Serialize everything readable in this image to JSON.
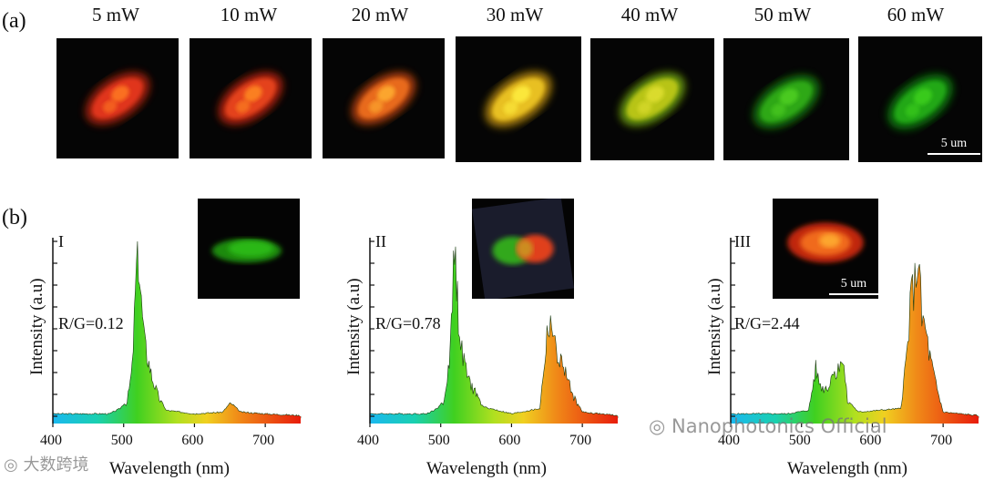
{
  "panel_a": {
    "label": "(a)",
    "powers": [
      "5 mW",
      "10 mW",
      "20 mW",
      "30 mW",
      "40 mW",
      "50 mW",
      "60 mW"
    ],
    "scale_bar": "5 um",
    "tile_colors": [
      {
        "core": "#e0351c",
        "glow": "#a8200e",
        "accent": "#ff7a20"
      },
      {
        "core": "#e4421c",
        "glow": "#b02410",
        "accent": "#ff8a24"
      },
      {
        "core": "#e86a1a",
        "glow": "#b0400c",
        "accent": "#ffb030"
      },
      {
        "core": "#e8c020",
        "glow": "#b88a10",
        "accent": "#ffee40"
      },
      {
        "core": "#b8c418",
        "glow": "#6a9a10",
        "accent": "#e0e030"
      },
      {
        "core": "#2ea818",
        "glow": "#157a0c",
        "accent": "#50d020"
      },
      {
        "core": "#22a814",
        "glow": "#107a08",
        "accent": "#3cd01c"
      }
    ]
  },
  "panel_b": {
    "label": "(b)",
    "x_label": "Wavelength (nm)",
    "y_label": "Intensity (a.u)",
    "x_ticks": [
      "400",
      "500",
      "600",
      "700"
    ],
    "inset_scale_bar": "5 um",
    "plots": [
      {
        "id": "I",
        "ratio": "R/G=0.12",
        "inset": "green"
      },
      {
        "id": "II",
        "ratio": "R/G=0.78",
        "inset": "mixed"
      },
      {
        "id": "III",
        "ratio": "R/G=2.44",
        "inset": "red"
      }
    ]
  },
  "watermarks": {
    "left": "大数跨境",
    "right": "Nanophotonics Official"
  },
  "chart_data": [
    {
      "type": "area",
      "title": "I",
      "xlabel": "Wavelength (nm)",
      "ylabel": "Intensity (a.u)",
      "xlim": [
        400,
        750
      ],
      "annotation": "R/G=0.12",
      "x": [
        400,
        480,
        495,
        505,
        512,
        518,
        521,
        525,
        530,
        540,
        550,
        560,
        600,
        640,
        650,
        655,
        665,
        700,
        750
      ],
      "values": [
        0.02,
        0.02,
        0.05,
        0.1,
        0.3,
        0.9,
        1.0,
        0.7,
        0.45,
        0.25,
        0.12,
        0.04,
        0.02,
        0.03,
        0.08,
        0.07,
        0.03,
        0.02,
        0.01
      ]
    },
    {
      "type": "area",
      "title": "II",
      "xlabel": "Wavelength (nm)",
      "ylabel": "Intensity (a.u)",
      "xlim": [
        400,
        750
      ],
      "annotation": "R/G=0.78",
      "x": [
        400,
        480,
        495,
        505,
        512,
        518,
        521,
        525,
        530,
        540,
        550,
        560,
        600,
        640,
        650,
        655,
        660,
        668,
        675,
        685,
        700,
        750
      ],
      "values": [
        0.02,
        0.02,
        0.05,
        0.1,
        0.35,
        0.9,
        1.0,
        0.6,
        0.4,
        0.22,
        0.15,
        0.06,
        0.02,
        0.05,
        0.5,
        0.62,
        0.45,
        0.35,
        0.3,
        0.15,
        0.03,
        0.01
      ]
    },
    {
      "type": "area",
      "title": "III",
      "xlabel": "Wavelength (nm)",
      "ylabel": "Intensity (a.u)",
      "xlim": [
        400,
        750
      ],
      "annotation": "R/G=2.44",
      "x": [
        400,
        480,
        510,
        520,
        525,
        530,
        540,
        545,
        550,
        555,
        560,
        565,
        580,
        640,
        650,
        655,
        660,
        665,
        670,
        675,
        680,
        690,
        700,
        750
      ],
      "values": [
        0.02,
        0.02,
        0.04,
        0.3,
        0.22,
        0.18,
        0.2,
        0.32,
        0.25,
        0.38,
        0.3,
        0.1,
        0.03,
        0.05,
        0.45,
        0.75,
        0.82,
        1.0,
        0.6,
        0.55,
        0.4,
        0.2,
        0.03,
        0.01
      ]
    }
  ]
}
